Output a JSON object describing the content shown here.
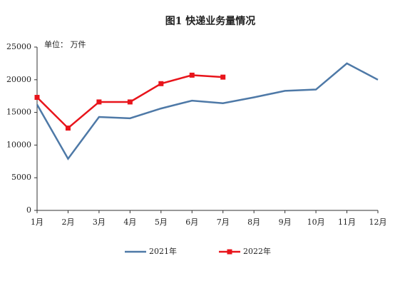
{
  "chart_data": {
    "type": "line",
    "title": "图1  快递业务量情况",
    "unit_label": "单位：  万件",
    "categories": [
      "1月",
      "2月",
      "3月",
      "4月",
      "5月",
      "6月",
      "7月",
      "8月",
      "9月",
      "10月",
      "11月",
      "12月"
    ],
    "series": [
      {
        "name": "2021年",
        "color": "#4e79a7",
        "marker": null,
        "values": [
          16200,
          7900,
          14300,
          14100,
          15600,
          16800,
          16400,
          17300,
          18300,
          18500,
          22500,
          20000
        ]
      },
      {
        "name": "2022年",
        "color": "#e8141b",
        "marker": "square",
        "values": [
          17300,
          12600,
          16600,
          16600,
          19400,
          20700,
          20400,
          null,
          null,
          null,
          null,
          null
        ]
      }
    ],
    "ylim": [
      0,
      25000
    ],
    "yticks": [
      0,
      5000,
      10000,
      15000,
      20000,
      25000
    ],
    "grid": false,
    "legend": "bottom"
  }
}
